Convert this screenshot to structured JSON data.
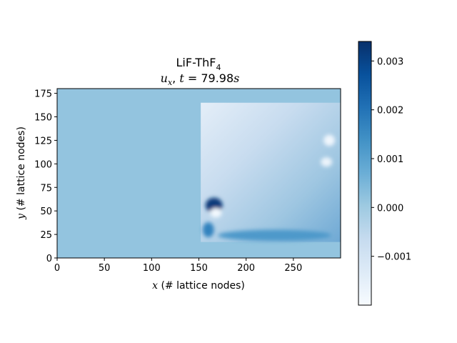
{
  "chart_data": {
    "type": "heatmap",
    "title": {
      "line1_main": "LiF-ThF",
      "line1_sub": "4",
      "line2_var": "u",
      "line2_var_sub": "x",
      "line2_sep": ", ",
      "line2_t": "t",
      "line2_eq": " = ",
      "line2_value": "79.98",
      "line2_unit": "s"
    },
    "xlabel": {
      "var": "x",
      "text": " (# lattice nodes)"
    },
    "ylabel": {
      "var": "y",
      "text": " (# lattice nodes)"
    },
    "xlim": [
      0,
      300
    ],
    "ylim": [
      0,
      180
    ],
    "xticks": [
      0,
      50,
      100,
      150,
      200,
      250
    ],
    "yticks": [
      0,
      25,
      50,
      75,
      100,
      125,
      150,
      175
    ],
    "colormap": "Blues",
    "colorbar": {
      "vmin": -0.002,
      "vmax": 0.0034,
      "ticks": [
        {
          "value": -0.001,
          "label": "−0.001"
        },
        {
          "value": 0.0,
          "label": "0.000"
        },
        {
          "value": 0.001,
          "label": "0.001"
        },
        {
          "value": 0.002,
          "label": "0.002"
        },
        {
          "value": 0.003,
          "label": "0.003"
        }
      ]
    },
    "field": {
      "background_value": 0.00017,
      "region_x": [
        152,
        300
      ],
      "region_y": [
        17,
        165
      ],
      "region_base_value": -0.0005,
      "features": [
        {
          "name": "dark-vortex",
          "x": 166,
          "y": 56,
          "rx": 9,
          "ry": 8,
          "value": 0.0032
        },
        {
          "name": "light-vortex",
          "x": 168,
          "y": 48,
          "rx": 6,
          "ry": 5,
          "value": -0.0019
        },
        {
          "name": "lower-left-eddy",
          "x": 160,
          "y": 30,
          "rx": 6,
          "ry": 8,
          "value": 0.0017
        },
        {
          "name": "upper-right-eddy",
          "x": 288,
          "y": 125,
          "rx": 6,
          "ry": 6,
          "value": -0.0018
        },
        {
          "name": "right-eddy",
          "x": 285,
          "y": 102,
          "rx": 6,
          "ry": 5,
          "value": -0.0017
        },
        {
          "name": "bottom-band",
          "x": 230,
          "y": 24,
          "rx": 60,
          "ry": 6,
          "value": 0.0012
        }
      ]
    }
  },
  "colors": {
    "background_field": "#a0c9e2",
    "axis": "#000000"
  }
}
